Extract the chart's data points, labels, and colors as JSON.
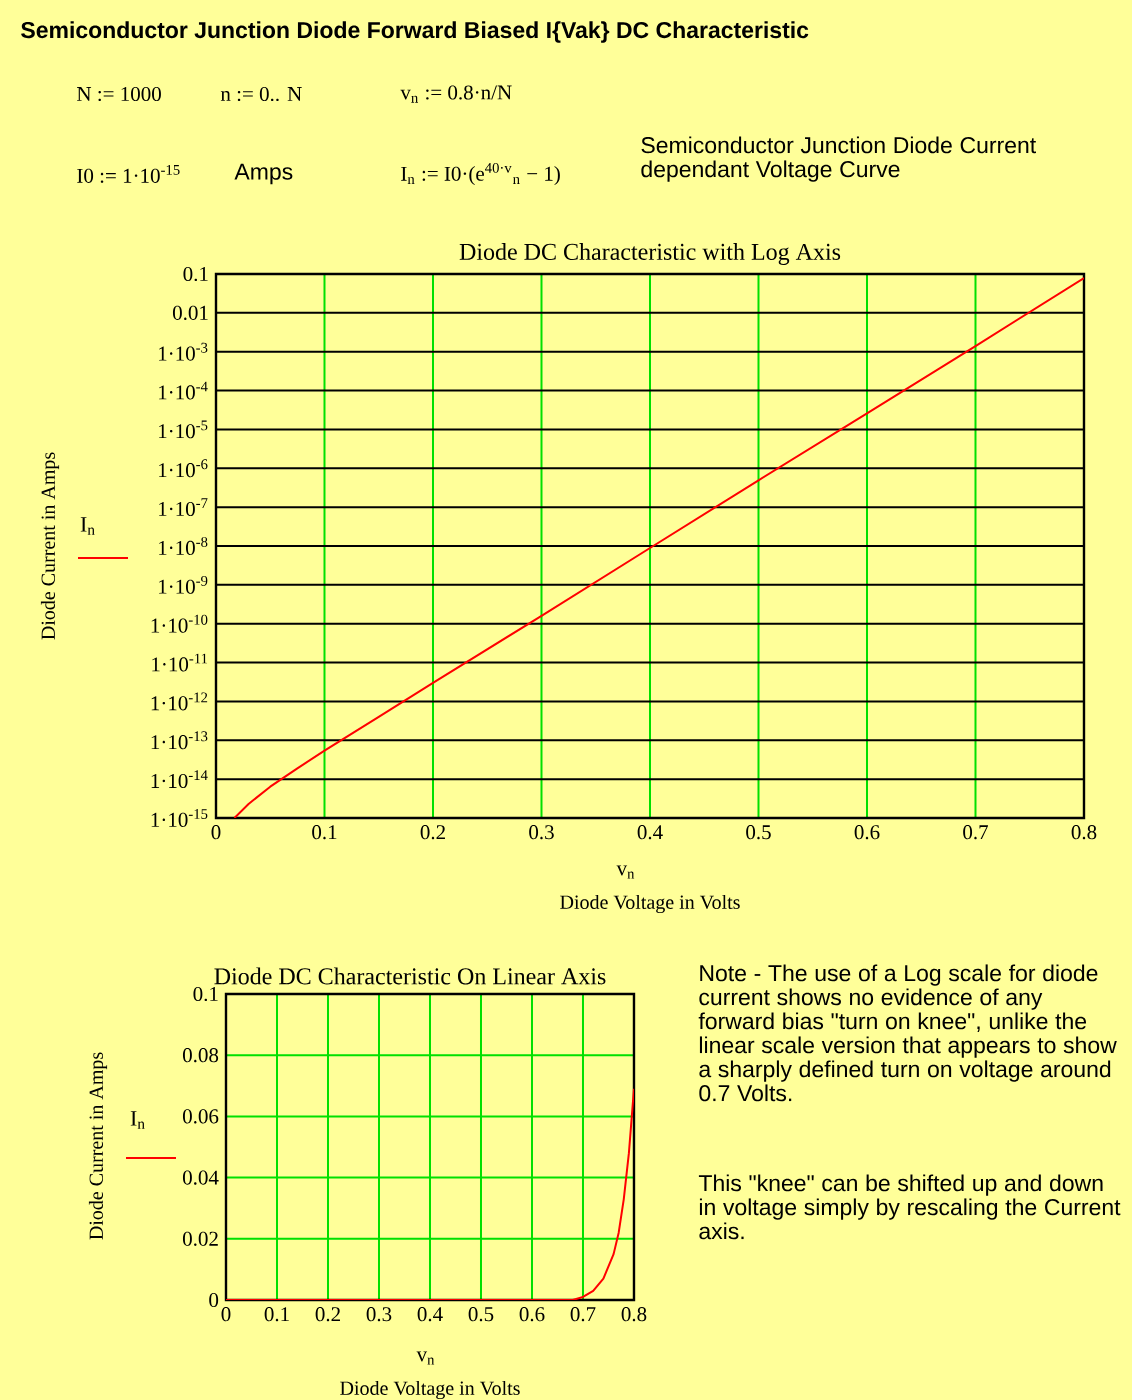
{
  "chart_data": [
    {
      "type": "line",
      "title": "Diode DC Characteristic with Log Axis",
      "xlabel": "Diode Voltage in Volts",
      "ylabel": "Diode Current in Amps",
      "log": "y",
      "grid": true,
      "legend": "left",
      "x": [
        0.017,
        0.03,
        0.05,
        0.075,
        0.1,
        0.15,
        0.2,
        0.3,
        0.4,
        0.5,
        0.6,
        0.7,
        0.8
      ],
      "series": [
        {
          "name": "I$_{n}$",
          "color": "#ff0000",
          "values": [
            1e-15,
            2.3e-15,
            6.4e-15,
            1.9e-14,
            5.4e-14,
            4e-13,
            3e-12,
            1.6e-10,
            8.9e-09,
            4.9e-07,
            2.6e-05,
            0.0014,
            0.079
          ]
        }
      ],
      "xlim": [
        0,
        0.8
      ],
      "ylim": [
        1e-15,
        0.1
      ],
      "xticks": [
        0,
        0.1,
        0.2,
        0.3,
        0.4,
        0.5,
        0.6,
        0.7,
        0.8
      ],
      "yticks": [
        0.1,
        0.01,
        {
          "value": 0.001,
          "label": "1·10$^{-3}$"
        },
        {
          "value": 0.0001,
          "label": "1·10$^{-4}$"
        },
        {
          "value": 1e-05,
          "label": "1·10$^{-5}$"
        },
        {
          "value": 1e-06,
          "label": "1·10$^{-6}$"
        },
        {
          "value": 1e-07,
          "label": "1·10$^{-7}$"
        },
        {
          "value": 1e-08,
          "label": "1·10$^{-8}$"
        },
        {
          "value": 1e-09,
          "label": "1·10$^{-9}$"
        },
        {
          "value": 1e-10,
          "label": "1·10$^{-10}$"
        },
        {
          "value": 1e-11,
          "label": "1·10$^{-11}$"
        },
        {
          "value": 1e-12,
          "label": "1·10$^{-12}$"
        },
        {
          "value": 1e-13,
          "label": "1·10$^{-13}$"
        },
        {
          "value": 1e-14,
          "label": "1·10$^{-14}$"
        },
        {
          "value": 1e-15,
          "label": "1·10$^{-15}$"
        }
      ],
      "annotations": [
        "Semiconductor Junction Diode Forward Biased  I{Vak}  DC Characteristic",
        "N := 1000",
        "n := 0.. N",
        "v$_{n}$ := 0.8·n/N",
        "I0 := 1·10$^{-15}$",
        "Amps",
        "I$_{n}$ := I0·(e$^{40·v}$$_{n}$ − 1)",
        "Semiconductor Junction Diode Current dependant Voltage Curve",
        "v$_{n}$"
      ]
    },
    {
      "type": "line",
      "title": "Diode DC Characteristic On Linear Axis",
      "xlabel": "Diode Voltage in Volts",
      "ylabel": "Diode Current in Amps",
      "grid": true,
      "legend": "left",
      "x": [
        0,
        0.68,
        0.7,
        0.72,
        0.74,
        0.76,
        0.77,
        0.78,
        0.79,
        0.8
      ],
      "series": [
        {
          "name": "I$_{n}$",
          "color": "#ff0000",
          "values": [
            0,
            0,
            0.001,
            0.003,
            0.007,
            0.015,
            0.022,
            0.033,
            0.048,
            0.069
          ]
        }
      ],
      "xlim": [
        0,
        0.8
      ],
      "ylim": [
        0,
        0.1
      ],
      "xticks": [
        0,
        0.1,
        0.2,
        0.3,
        0.4,
        0.5,
        0.6,
        0.7,
        0.8
      ],
      "yticks": [
        0,
        0.02,
        0.04,
        0.06,
        0.08,
        0.1
      ],
      "annotations": [
        "v$_{n}$",
        "Note - The use of a Log scale for diode current shows no evidence of any forward bias \"turn on knee\", unlike the linear scale version that appears to show a sharply defined turn on voltage around 0.7 Volts.",
        "This \"knee\" can be shifted up and down in voltage simply by rescaling the Current axis."
      ]
    }
  ]
}
